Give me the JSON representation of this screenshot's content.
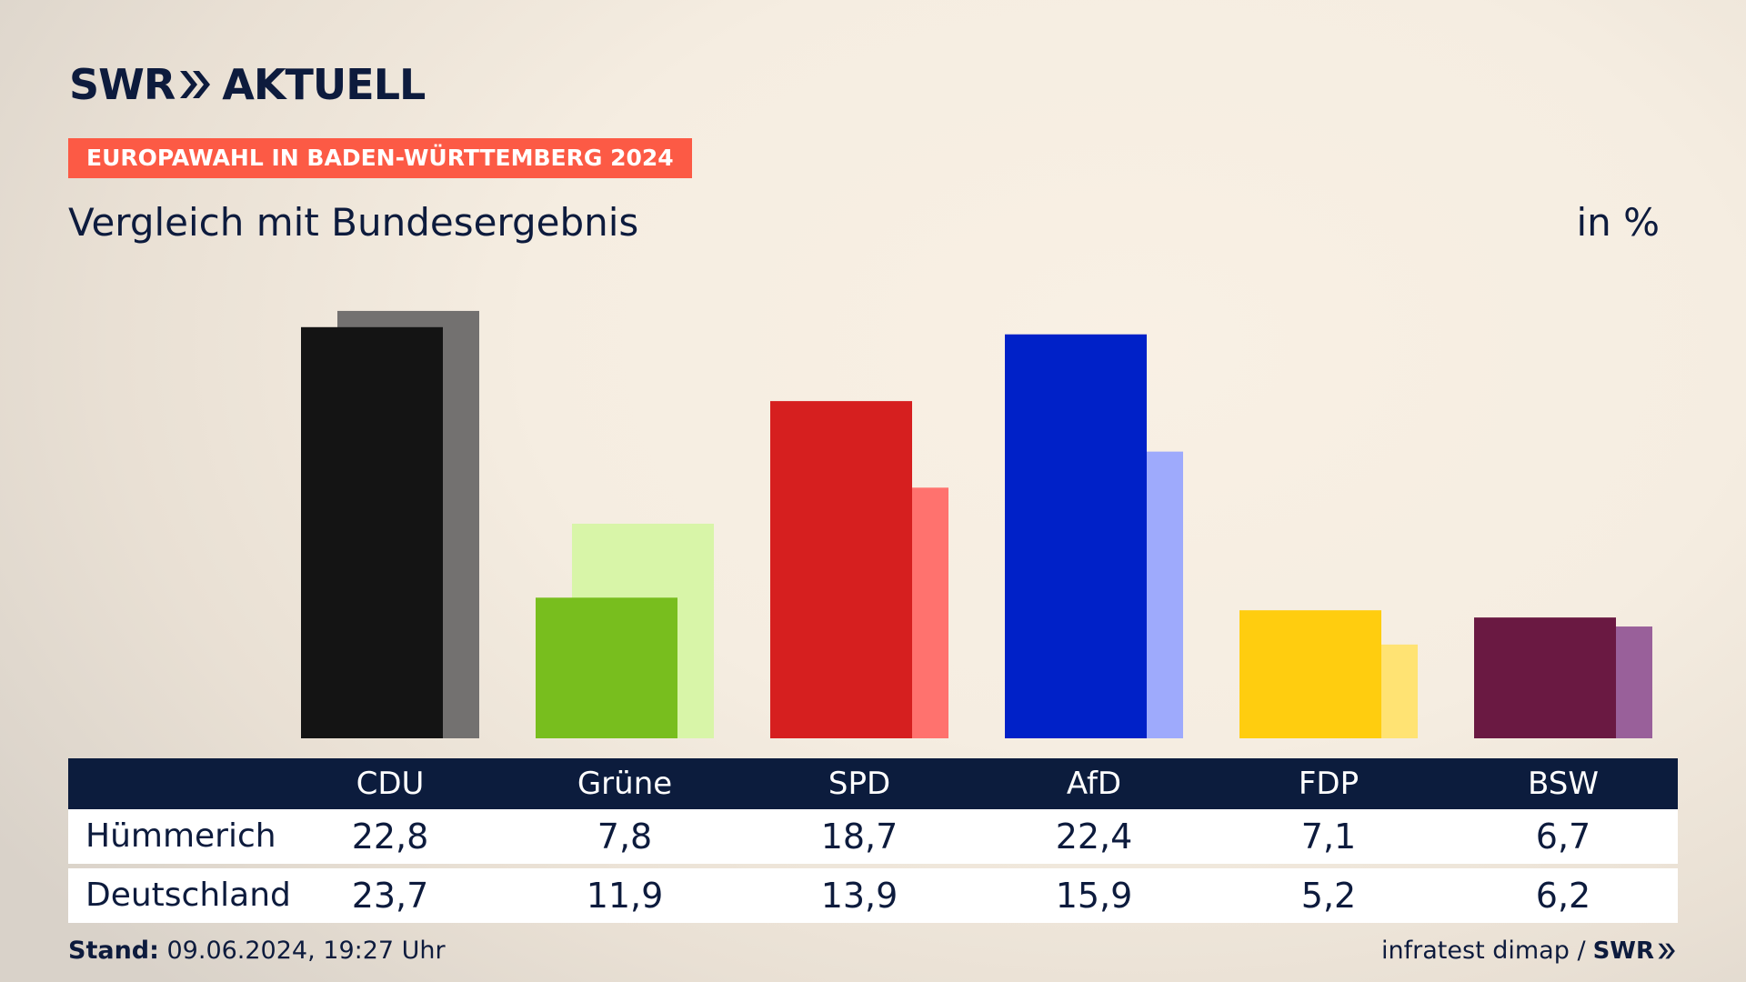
{
  "brand": {
    "logo_left": "SWR",
    "logo_right": "AKTUELL",
    "source_brand": "SWR"
  },
  "header": {
    "badge": "EUROPAWAHL IN BADEN-WÜRTTEMBERG 2024",
    "subtitle": "Vergleich mit Bundesergebnis",
    "unit": "in %"
  },
  "footer": {
    "stand_label": "Stand:",
    "stand_value": " 09.06.2024, 19:27 Uhr",
    "source": "infratest dimap /"
  },
  "chart_data": {
    "type": "bar",
    "categories": [
      "CDU",
      "Grüne",
      "SPD",
      "AfD",
      "FDP",
      "BSW"
    ],
    "series": [
      {
        "name": "Hümmerich",
        "values": [
          22.8,
          7.8,
          18.7,
          22.4,
          7.1,
          6.7
        ],
        "colors": [
          "#141414",
          "#78be1e",
          "#d61f1f",
          "#0021c8",
          "#ffcd0f",
          "#6a1942"
        ]
      },
      {
        "name": "Deutschland",
        "values": [
          23.7,
          11.9,
          13.9,
          15.9,
          5.2,
          6.2
        ],
        "colors": [
          "#737170",
          "#d8f5a8",
          "#ff726e",
          "#9eaafc",
          "#ffe373",
          "#99609a"
        ]
      }
    ],
    "value_labels": {
      "Hümmerich": [
        "22,8",
        "7,8",
        "18,7",
        "22,4",
        "7,1",
        "6,7"
      ],
      "Deutschland": [
        "23,7",
        "11,9",
        "13,9",
        "15,9",
        "5,2",
        "6,2"
      ]
    },
    "ylim": [
      0,
      24
    ],
    "grid": false,
    "legend": "table below chart"
  }
}
